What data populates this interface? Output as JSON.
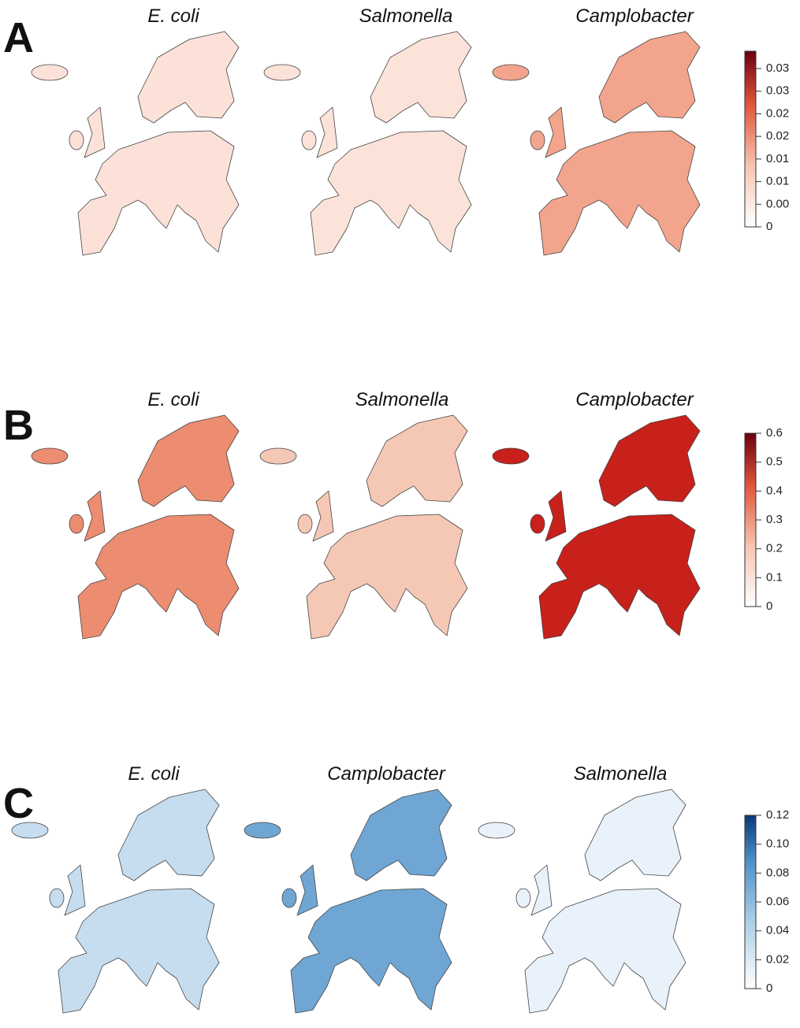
{
  "panels": [
    {
      "letter": "A",
      "maps": [
        "E. coli",
        "Salmonella",
        "Camplobacter"
      ],
      "colorbar": [
        "0.03",
        "0.03",
        "0.02",
        "0.02",
        "0.01",
        "0.01",
        "0.00",
        "0"
      ]
    },
    {
      "letter": "B",
      "maps": [
        "E. coli",
        "Salmonella",
        "Camplobacter"
      ],
      "colorbar": [
        "0.6",
        "0.5",
        "0.4",
        "0.3",
        "0.2",
        "0.1",
        "0"
      ]
    },
    {
      "letter": "C",
      "maps": [
        "E. coli",
        "Camplobacter",
        "Salmonella"
      ],
      "colorbar": [
        "0.12",
        "0.10",
        "0.08",
        "0.06",
        "0.04",
        "0.02",
        "0"
      ]
    }
  ]
}
